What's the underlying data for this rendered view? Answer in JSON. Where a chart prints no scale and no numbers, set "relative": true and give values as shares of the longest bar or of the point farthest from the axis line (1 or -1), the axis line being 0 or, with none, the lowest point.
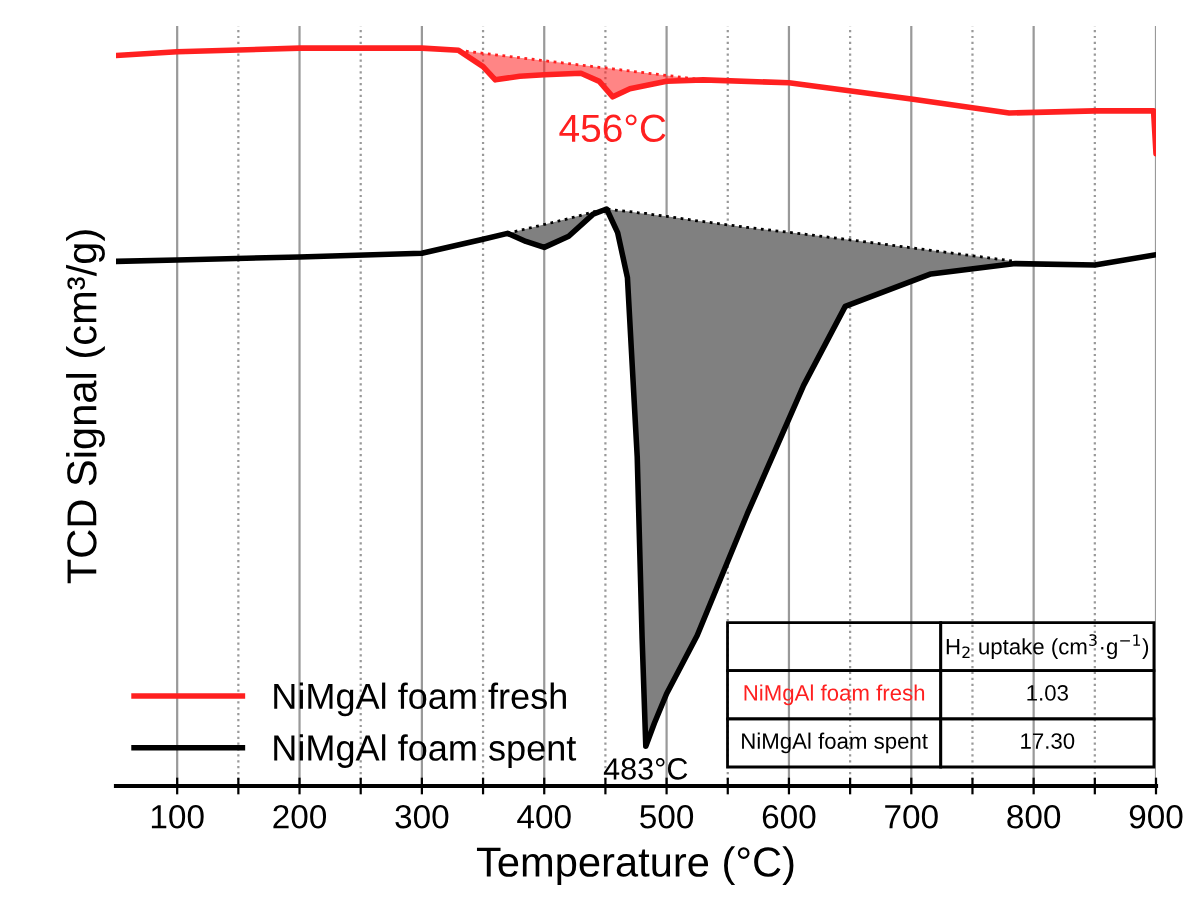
{
  "chart_data": {
    "type": "line",
    "relative": true,
    "xlabel": "Temperature (°C)",
    "ylabel": "TCD Signal (cm³/g)",
    "xlim": [
      50,
      900
    ],
    "xticks": [
      100,
      {
        "value": 150,
        "label": null
      },
      200,
      {
        "value": 250,
        "label": null
      },
      300,
      {
        "value": 350,
        "label": null
      },
      400,
      {
        "value": 450,
        "label": null
      },
      500,
      {
        "value": 550,
        "label": null
      },
      600,
      {
        "value": 650,
        "label": null
      },
      700,
      {
        "value": 750,
        "label": null
      },
      800,
      {
        "value": 850,
        "label": null
      },
      900
    ],
    "grid": "x",
    "legend": "bottom left",
    "tick_labels": "x",
    "line_style": "solid",
    "marker": "none",
    "series": [
      {
        "name": "NiMgAl foam fresh",
        "color": "#ff2020",
        "x": [
          50,
          100,
          200,
          300,
          330,
          350,
          360,
          380,
          400,
          430,
          445,
          456,
          470,
          500,
          530,
          600,
          700,
          780,
          850,
          898,
          900
        ],
        "values": [
          0.99,
          0.995,
          1.0,
          1.0,
          0.997,
          0.975,
          0.957,
          0.962,
          0.964,
          0.966,
          0.955,
          0.934,
          0.945,
          0.955,
          0.957,
          0.953,
          0.931,
          0.912,
          0.915,
          0.915,
          0.857
        ]
      },
      {
        "type": "line",
        "line_style": "dotted",
        "color": "#ff2020",
        "x": [
          330,
          350,
          360,
          380,
          400,
          430,
          445,
          456,
          470,
          500,
          530
        ],
        "values": [
          0.997,
          0.993,
          0.991,
          0.987,
          0.983,
          0.977,
          0.974,
          0.972,
          0.969,
          0.963,
          0.957
        ],
        "lower": [
          0.997,
          0.975,
          0.957,
          0.962,
          0.964,
          0.966,
          0.955,
          0.934,
          0.945,
          0.955,
          0.957
        ],
        "upper": [
          0.997,
          0.993,
          0.991,
          0.987,
          0.983,
          0.977,
          0.974,
          0.972,
          0.969,
          0.963,
          0.957
        ]
      },
      {
        "name": "NiMgAl foam spent",
        "color": "#000000",
        "x": [
          50,
          100,
          200,
          300,
          350,
          370,
          385,
          400,
          420,
          440,
          451,
          460,
          468,
          476,
          480,
          483,
          490,
          500,
          525,
          566,
          612,
          646,
          716,
          785,
          850,
          900
        ],
        "values": [
          0.711,
          0.713,
          0.717,
          0.722,
          0.741,
          0.749,
          0.738,
          0.73,
          0.745,
          0.775,
          0.782,
          0.75,
          0.689,
          0.446,
          0.2,
          0.054,
          0.085,
          0.125,
          0.204,
          0.369,
          0.543,
          0.65,
          0.694,
          0.708,
          0.706,
          0.72
        ]
      },
      {
        "type": "line",
        "line_style": "dotted",
        "color": "#000000",
        "x": [
          370,
          385,
          400,
          420,
          440,
          451,
          460,
          468,
          476,
          480,
          483,
          490,
          500,
          525,
          566,
          612,
          646,
          716,
          785
        ],
        "values": [
          0.749,
          0.755,
          0.761,
          0.769,
          0.778,
          0.782,
          0.78,
          0.779,
          0.777,
          0.776,
          0.776,
          0.774,
          0.772,
          0.766,
          0.757,
          0.748,
          0.741,
          0.726,
          0.711
        ],
        "lower": [
          0.749,
          0.738,
          0.73,
          0.745,
          0.775,
          0.782,
          0.75,
          0.689,
          0.446,
          0.2,
          0.054,
          0.085,
          0.125,
          0.204,
          0.369,
          0.543,
          0.65,
          0.694,
          0.708
        ],
        "upper": [
          0.749,
          0.755,
          0.761,
          0.769,
          0.778,
          0.782,
          0.78,
          0.779,
          0.777,
          0.776,
          0.776,
          0.774,
          0.772,
          0.766,
          0.757,
          0.748,
          0.741,
          0.726,
          0.711
        ]
      }
    ],
    "annotations": [
      {
        "text": "456°C",
        "x": 456,
        "y": 0.934
      },
      {
        "text": "483°C",
        "x": 483,
        "y": 0.054
      },
      "H$_{2}$ uptake (cm$^{3}$·g$^{−1}$)",
      "NiMgAl foam fresh",
      "1.03",
      "NiMgAl foam spent",
      "17.30"
    ]
  }
}
